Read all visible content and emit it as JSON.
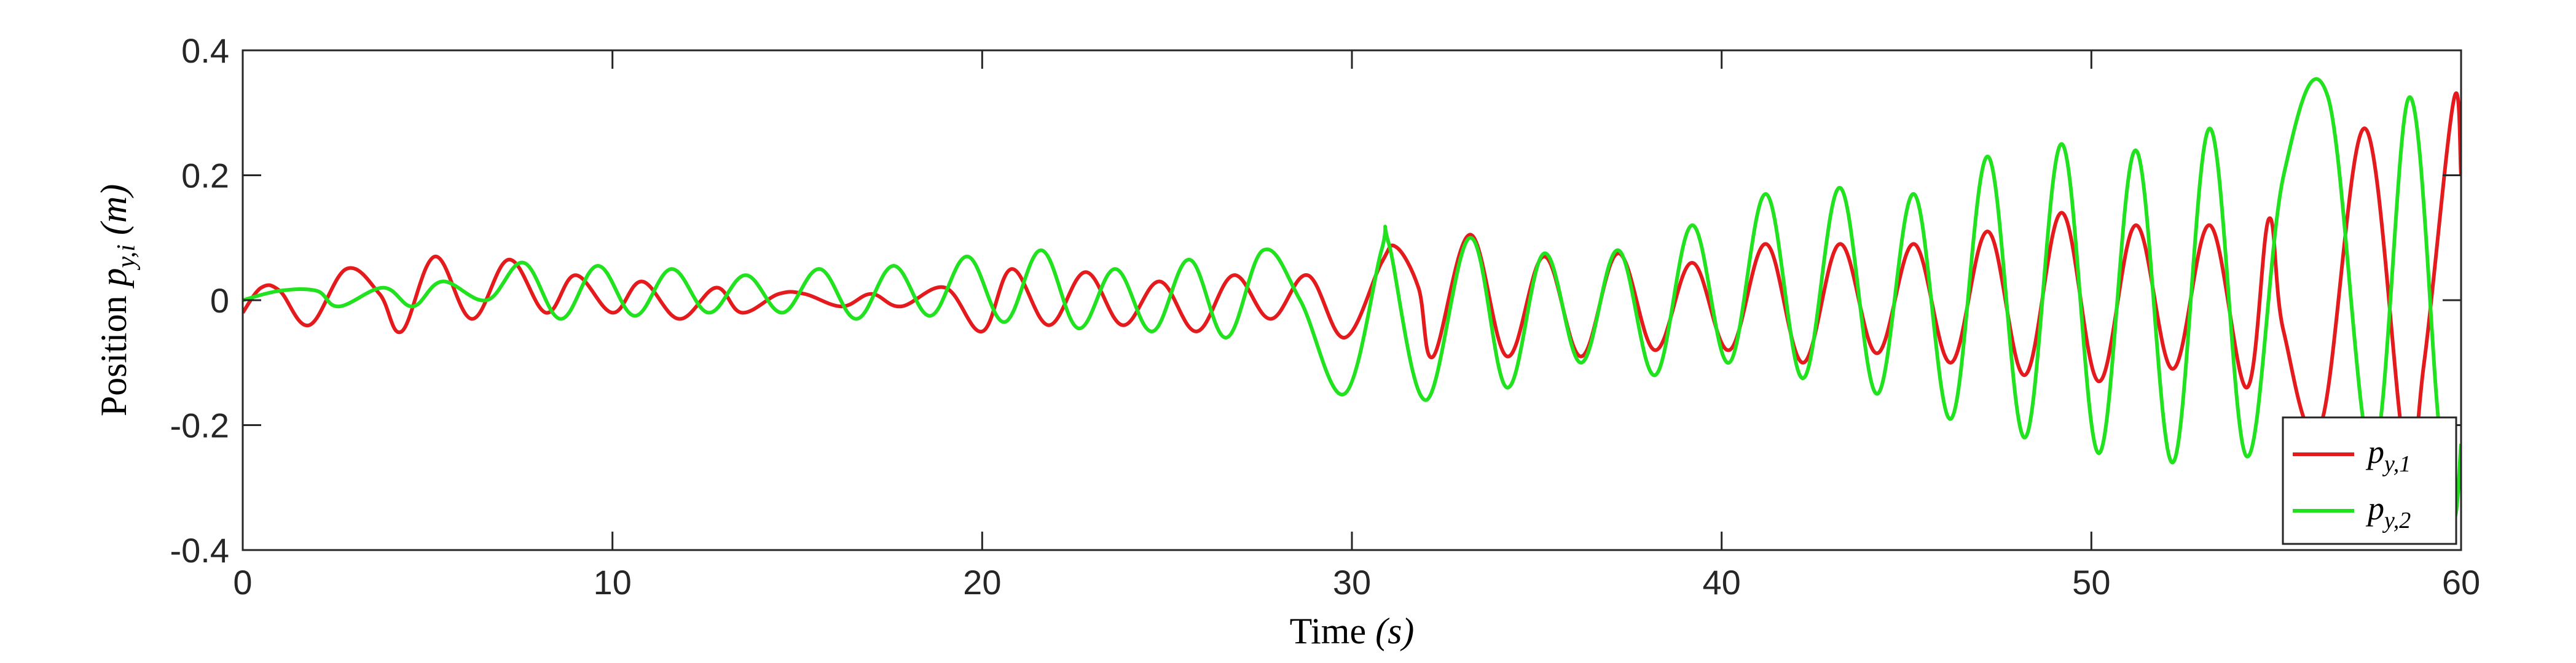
{
  "chart_data": {
    "type": "line",
    "xlabel": "Time (s)",
    "ylabel": "Position p_{y,i} (m)",
    "ylabel_prefix": "Position",
    "ylabel_var": "p",
    "ylabel_sub": "y,i",
    "ylabel_unit": "(m)",
    "xlabel_prefix": "Time",
    "xlabel_unit": "(s)",
    "xlim": [
      0,
      60
    ],
    "ylim": [
      -0.4,
      0.4
    ],
    "xticks": [
      0,
      10,
      20,
      30,
      40,
      50,
      60
    ],
    "xtick_labels": [
      "0",
      "10",
      "20",
      "30",
      "40",
      "50",
      "60"
    ],
    "yticks": [
      -0.4,
      -0.2,
      0,
      0.2,
      0.4
    ],
    "ytick_labels": [
      "-0.4",
      "-0.2",
      "0",
      "0.2",
      "0.4"
    ],
    "grid": false,
    "legend_position": "bottom-right",
    "series": [
      {
        "name": "p_{y,1}",
        "legend_var": "p",
        "legend_sub": "y,1",
        "color": "#e41a1c",
        "x": [
          0,
          0.5,
          1.0,
          1.8,
          2.8,
          3.7,
          4.3,
          5.2,
          6.2,
          7.2,
          8.2,
          9.0,
          10.0,
          10.8,
          11.8,
          12.8,
          13.5,
          14.5,
          15.2,
          16.2,
          17.0,
          17.8,
          19.0,
          20.0,
          20.8,
          21.8,
          22.8,
          23.8,
          24.8,
          25.8,
          26.8,
          27.8,
          28.8,
          29.8,
          30.8,
          31.2,
          31.8,
          32.2,
          33.2,
          34.2,
          35.2,
          36.2,
          37.2,
          38.2,
          39.2,
          40.2,
          41.2,
          42.2,
          43.2,
          44.2,
          45.2,
          46.2,
          47.2,
          48.2,
          49.2,
          50.2,
          51.2,
          52.2,
          53.2,
          54.2,
          54.8,
          55.2,
          56.2,
          57.4,
          58.5,
          59.0,
          59.8,
          60.0
        ],
        "y": [
          -0.02,
          0.02,
          0.015,
          -0.04,
          0.05,
          0.01,
          -0.05,
          0.07,
          -0.03,
          0.065,
          -0.02,
          0.04,
          -0.02,
          0.03,
          -0.03,
          0.02,
          -0.02,
          0.01,
          0.01,
          -0.01,
          0.01,
          -0.01,
          0.02,
          -0.05,
          0.05,
          -0.04,
          0.045,
          -0.04,
          0.03,
          -0.05,
          0.04,
          -0.03,
          0.04,
          -0.06,
          0.06,
          0.085,
          0.02,
          -0.09,
          0.105,
          -0.09,
          0.07,
          -0.09,
          0.075,
          -0.08,
          0.06,
          -0.08,
          0.09,
          -0.1,
          0.09,
          -0.085,
          0.09,
          -0.1,
          0.11,
          -0.12,
          0.14,
          -0.13,
          0.12,
          -0.11,
          0.12,
          -0.14,
          0.13,
          -0.05,
          -0.2,
          0.275,
          -0.25,
          -0.1,
          0.32,
          0.2
        ]
      },
      {
        "name": "p_{y,2}",
        "legend_var": "p",
        "legend_sub": "y,2",
        "color": "#21e21e",
        "x": [
          0,
          1.0,
          2.0,
          2.6,
          3.8,
          4.6,
          5.4,
          6.6,
          7.6,
          8.6,
          9.6,
          10.6,
          11.6,
          12.6,
          13.6,
          14.6,
          15.6,
          16.6,
          17.6,
          18.6,
          19.6,
          20.6,
          21.6,
          22.6,
          23.6,
          24.6,
          25.6,
          26.6,
          27.6,
          28.6,
          29.8,
          30.8,
          31.0,
          32.0,
          33.2,
          34.2,
          35.2,
          36.2,
          37.2,
          38.2,
          39.2,
          40.2,
          41.2,
          42.2,
          43.2,
          44.2,
          45.2,
          46.2,
          47.2,
          48.2,
          49.2,
          50.2,
          51.2,
          52.2,
          53.2,
          54.2,
          55.2,
          56.4,
          57.6,
          58.6,
          59.4,
          59.8,
          60.0
        ],
        "y": [
          0,
          0.015,
          0.015,
          -0.01,
          0.02,
          -0.01,
          0.03,
          0.0,
          0.06,
          -0.03,
          0.055,
          -0.025,
          0.05,
          -0.02,
          0.04,
          -0.02,
          0.05,
          -0.03,
          0.055,
          -0.025,
          0.07,
          -0.035,
          0.08,
          -0.045,
          0.05,
          -0.05,
          0.065,
          -0.06,
          0.08,
          0.0,
          -0.15,
          0.08,
          0.09,
          -0.16,
          0.1,
          -0.14,
          0.075,
          -0.1,
          0.08,
          -0.12,
          0.12,
          -0.1,
          0.17,
          -0.125,
          0.18,
          -0.15,
          0.17,
          -0.19,
          0.23,
          -0.22,
          0.25,
          -0.245,
          0.24,
          -0.26,
          0.275,
          -0.25,
          0.2,
          0.325,
          -0.25,
          0.325,
          -0.2,
          -0.35,
          -0.23
        ]
      }
    ]
  }
}
